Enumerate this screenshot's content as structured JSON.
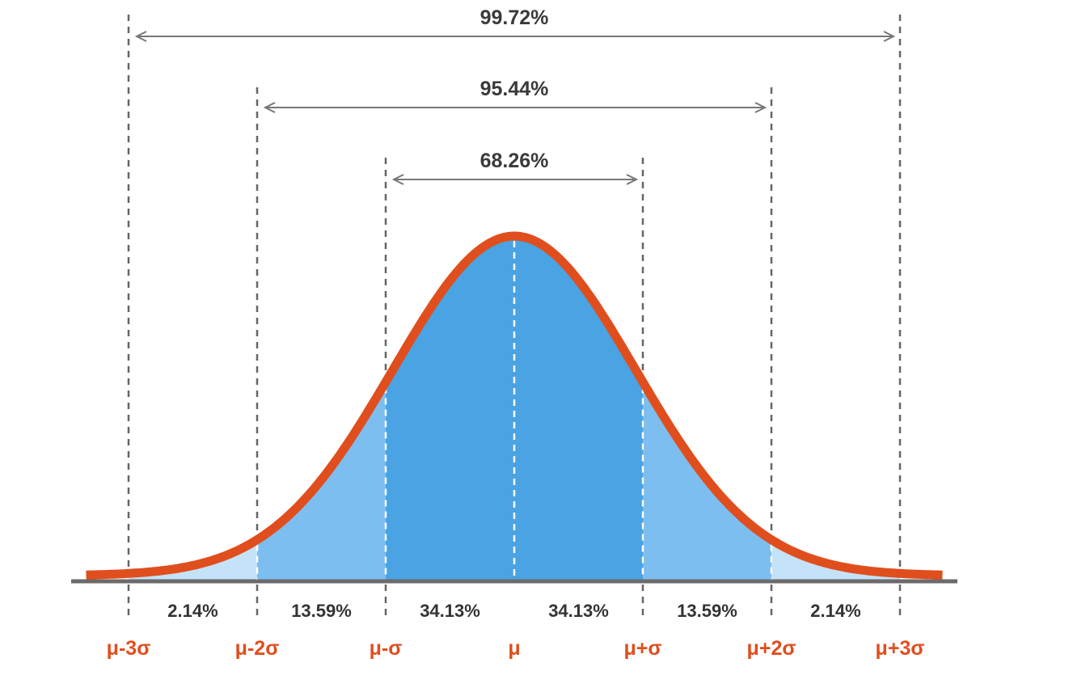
{
  "chart_data": {
    "type": "area",
    "distribution": "normal",
    "x_tick_labels": [
      "μ-3σ",
      "μ-2σ",
      "μ-σ",
      "μ",
      "μ+σ",
      "μ+2σ",
      "μ+3σ"
    ],
    "segments": [
      {
        "range": [
          "μ-3σ",
          "μ-2σ"
        ],
        "label": "2.14%",
        "value": 2.14
      },
      {
        "range": [
          "μ-2σ",
          "μ-σ"
        ],
        "label": "13.59%",
        "value": 13.59
      },
      {
        "range": [
          "μ-σ",
          "μ"
        ],
        "label": "34.13%",
        "value": 34.13
      },
      {
        "range": [
          "μ",
          "μ+σ"
        ],
        "label": "34.13%",
        "value": 34.13
      },
      {
        "range": [
          "μ+σ",
          "μ+2σ"
        ],
        "label": "13.59%",
        "value": 13.59
      },
      {
        "range": [
          "μ+2σ",
          "μ+3σ"
        ],
        "label": "2.14%",
        "value": 2.14
      }
    ],
    "intervals": [
      {
        "sigma": 1,
        "label": "68.26%",
        "value": 68.26
      },
      {
        "sigma": 2,
        "label": "95.44%",
        "value": 95.44
      },
      {
        "sigma": 3,
        "label": "99.72%",
        "value": 99.72
      }
    ],
    "colors": {
      "curve": "#E04E1E",
      "fill_1sigma": "#4AA3E2",
      "fill_2sigma": "#7DBEF0",
      "fill_3sigma": "#C4E2F8",
      "axis": "#6b6b6b",
      "guides": "#666666",
      "sigma_labels": "#E04E1E",
      "text": "#333333"
    },
    "grid": false
  }
}
